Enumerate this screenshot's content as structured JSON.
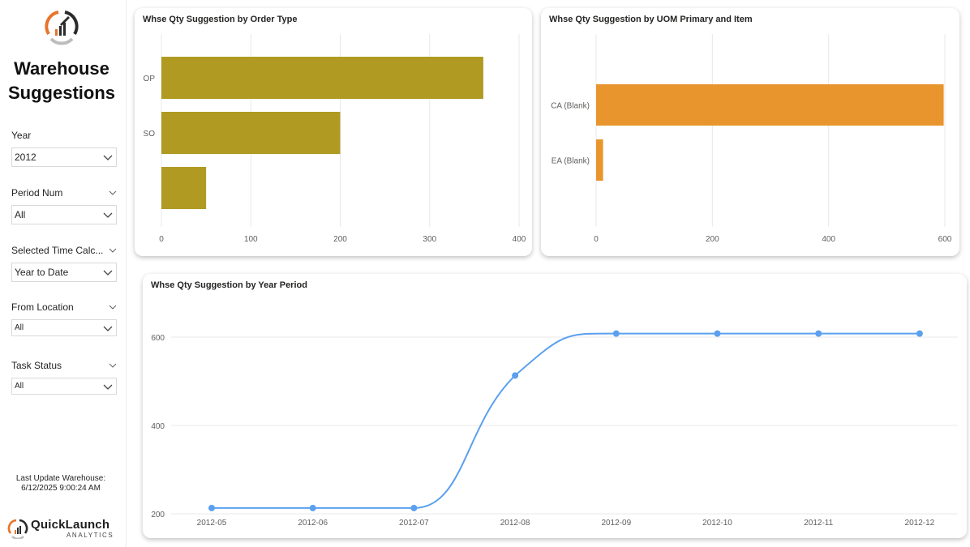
{
  "app": {
    "title_line1": "Warehouse",
    "title_line2": "Suggestions",
    "logo_icon": "rocket-gauge-icon"
  },
  "filters": {
    "year": {
      "label": "Year",
      "value": "2012"
    },
    "period_num": {
      "label": "Period Num",
      "value": "All"
    },
    "time_calc": {
      "label": "Selected Time Calc...",
      "value": "Year to Date"
    },
    "from_location": {
      "label": "From Location",
      "value": "All"
    },
    "task_status": {
      "label": "Task Status",
      "value": "All"
    }
  },
  "footer": {
    "last_update_line1": "Last Update Warehouse:",
    "last_update_line2": "6/12/2025 9:00:24 AM",
    "brand_name": "QuickLaunch",
    "brand_sub": "ANALYTICS"
  },
  "colors": {
    "order_type_bar": "#b09a22",
    "uom_bar": "#e9952d",
    "line": "#5aa0ee",
    "logo_orange": "#e8742a"
  },
  "chart_data": [
    {
      "type": "bar",
      "orientation": "horizontal",
      "title": "Whse Qty Suggestion by Order Type",
      "categories": [
        "OP",
        "SO",
        ""
      ],
      "values": [
        360,
        200,
        50
      ],
      "xticks": [
        "0",
        "100",
        "200",
        "300",
        "400"
      ],
      "xlim": [
        0,
        400
      ],
      "grid": true
    },
    {
      "type": "bar",
      "orientation": "horizontal",
      "title": "Whse Qty Suggestion by UOM Primary and Item",
      "categories": [
        "CA (Blank)",
        "EA (Blank)"
      ],
      "values": [
        598,
        12
      ],
      "xticks": [
        "0",
        "200",
        "400",
        "600"
      ],
      "xlim": [
        0,
        600
      ],
      "grid": true
    },
    {
      "type": "line",
      "title": "Whse Qty Suggestion by Year Period",
      "x": [
        "2012-05",
        "2012-06",
        "2012-07",
        "2012-08",
        "2012-09",
        "2012-10",
        "2012-11",
        "2012-12"
      ],
      "values": [
        213,
        213,
        213,
        513,
        608,
        608,
        608,
        608
      ],
      "yticks": [
        "200",
        "400",
        "600"
      ],
      "ylim": [
        200,
        620
      ],
      "grid": true
    }
  ]
}
